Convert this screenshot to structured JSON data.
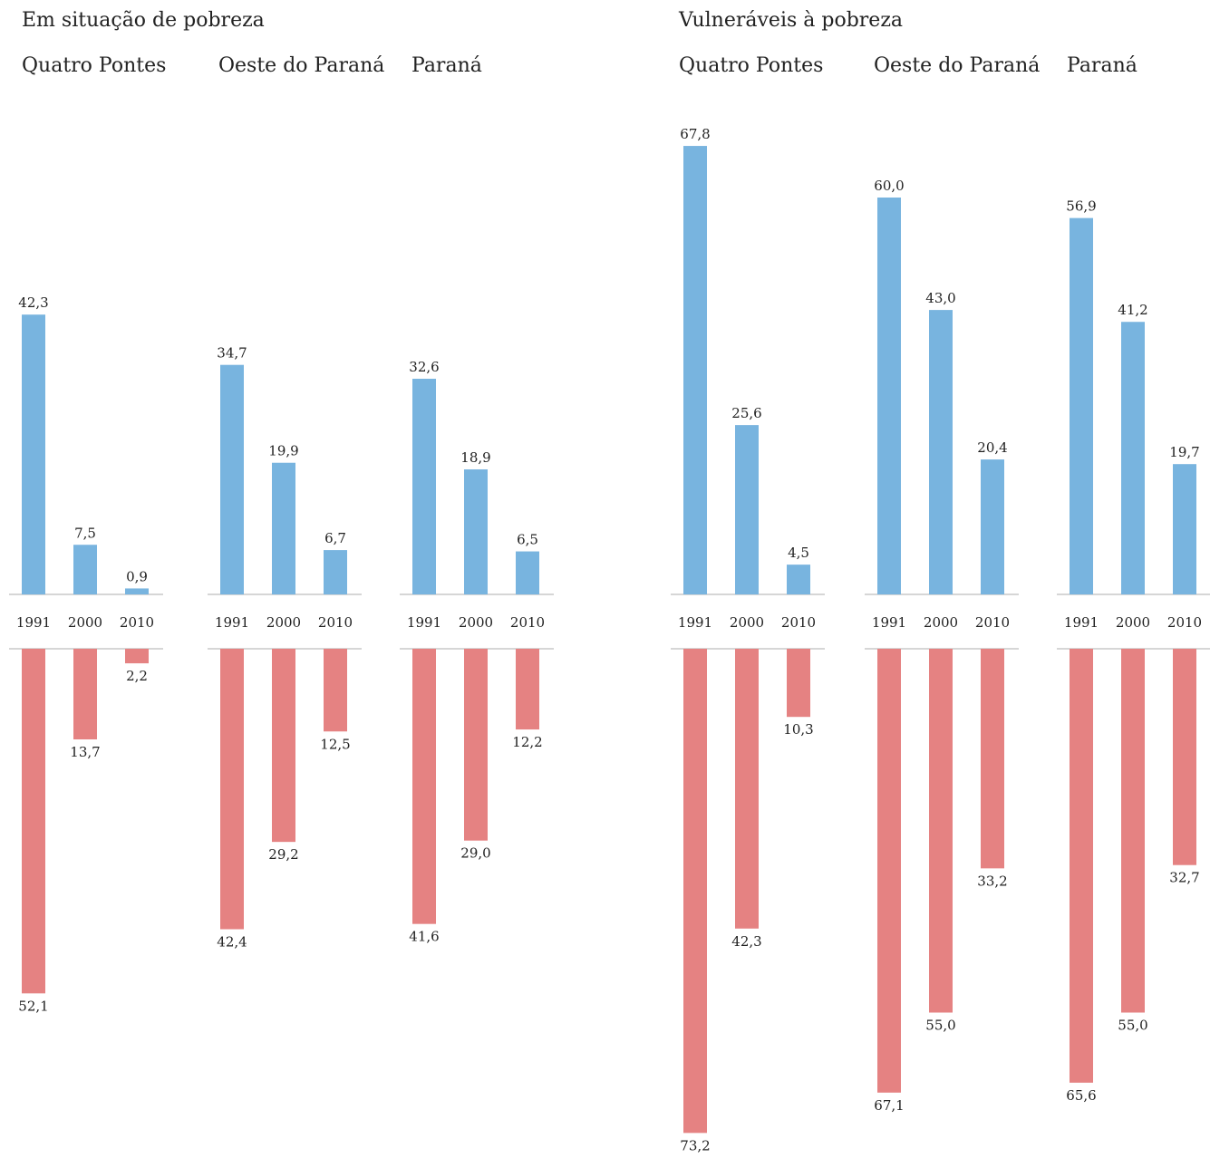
{
  "sections": [
    {
      "title": "Em situação de pobreza"
    },
    {
      "title": "Vulneráveis à pobreza"
    }
  ],
  "colors": {
    "top": "#78b4df",
    "bottom": "#e58282",
    "axis": "#c8c8c8"
  },
  "chart_data": [
    {
      "type": "bar",
      "title": "Quatro Pontes",
      "section": 0,
      "categories": [
        "1991",
        "2000",
        "2010"
      ],
      "series": [
        {
          "values": [
            42.3,
            7.5,
            0.9
          ],
          "labels": [
            "42,3",
            "7,5",
            "0,9"
          ]
        },
        {
          "values": [
            52.1,
            13.7,
            2.2
          ],
          "labels": [
            "52,1",
            "13,7",
            "2,2"
          ]
        }
      ]
    },
    {
      "type": "bar",
      "title": "Oeste do Paraná",
      "section": 0,
      "categories": [
        "1991",
        "2000",
        "2010"
      ],
      "series": [
        {
          "values": [
            34.7,
            19.9,
            6.7
          ],
          "labels": [
            "34,7",
            "19,9",
            "6,7"
          ]
        },
        {
          "values": [
            42.4,
            29.2,
            12.5
          ],
          "labels": [
            "42,4",
            "29,2",
            "12,5"
          ]
        }
      ]
    },
    {
      "type": "bar",
      "title": "Paraná",
      "section": 0,
      "categories": [
        "1991",
        "2000",
        "2010"
      ],
      "series": [
        {
          "values": [
            32.6,
            18.9,
            6.5
          ],
          "labels": [
            "32,6",
            "18,9",
            "6,5"
          ]
        },
        {
          "values": [
            41.6,
            29.0,
            12.2
          ],
          "labels": [
            "41,6",
            "29,0",
            "12,2"
          ]
        }
      ]
    },
    {
      "type": "bar",
      "title": "Quatro Pontes",
      "section": 1,
      "categories": [
        "1991",
        "2000",
        "2010"
      ],
      "series": [
        {
          "values": [
            67.8,
            25.6,
            4.5
          ],
          "labels": [
            "67,8",
            "25,6",
            "4,5"
          ]
        },
        {
          "values": [
            73.2,
            42.3,
            10.3
          ],
          "labels": [
            "73,2",
            "42,3",
            "10,3"
          ]
        }
      ]
    },
    {
      "type": "bar",
      "title": "Oeste do Paraná",
      "section": 1,
      "categories": [
        "1991",
        "2000",
        "2010"
      ],
      "series": [
        {
          "values": [
            60.0,
            43.0,
            20.4
          ],
          "labels": [
            "60,0",
            "43,0",
            "20,4"
          ]
        },
        {
          "values": [
            67.1,
            55.0,
            33.2
          ],
          "labels": [
            "67,1",
            "55,0",
            "33,2"
          ]
        }
      ]
    },
    {
      "type": "bar",
      "title": "Paraná",
      "section": 1,
      "categories": [
        "1991",
        "2000",
        "2010"
      ],
      "series": [
        {
          "values": [
            56.9,
            41.2,
            19.7
          ],
          "labels": [
            "56,9",
            "41,2",
            "19,7"
          ]
        },
        {
          "values": [
            65.6,
            55.0,
            32.7
          ],
          "labels": [
            "65,6",
            "55,0",
            "32,7"
          ]
        }
      ]
    }
  ]
}
